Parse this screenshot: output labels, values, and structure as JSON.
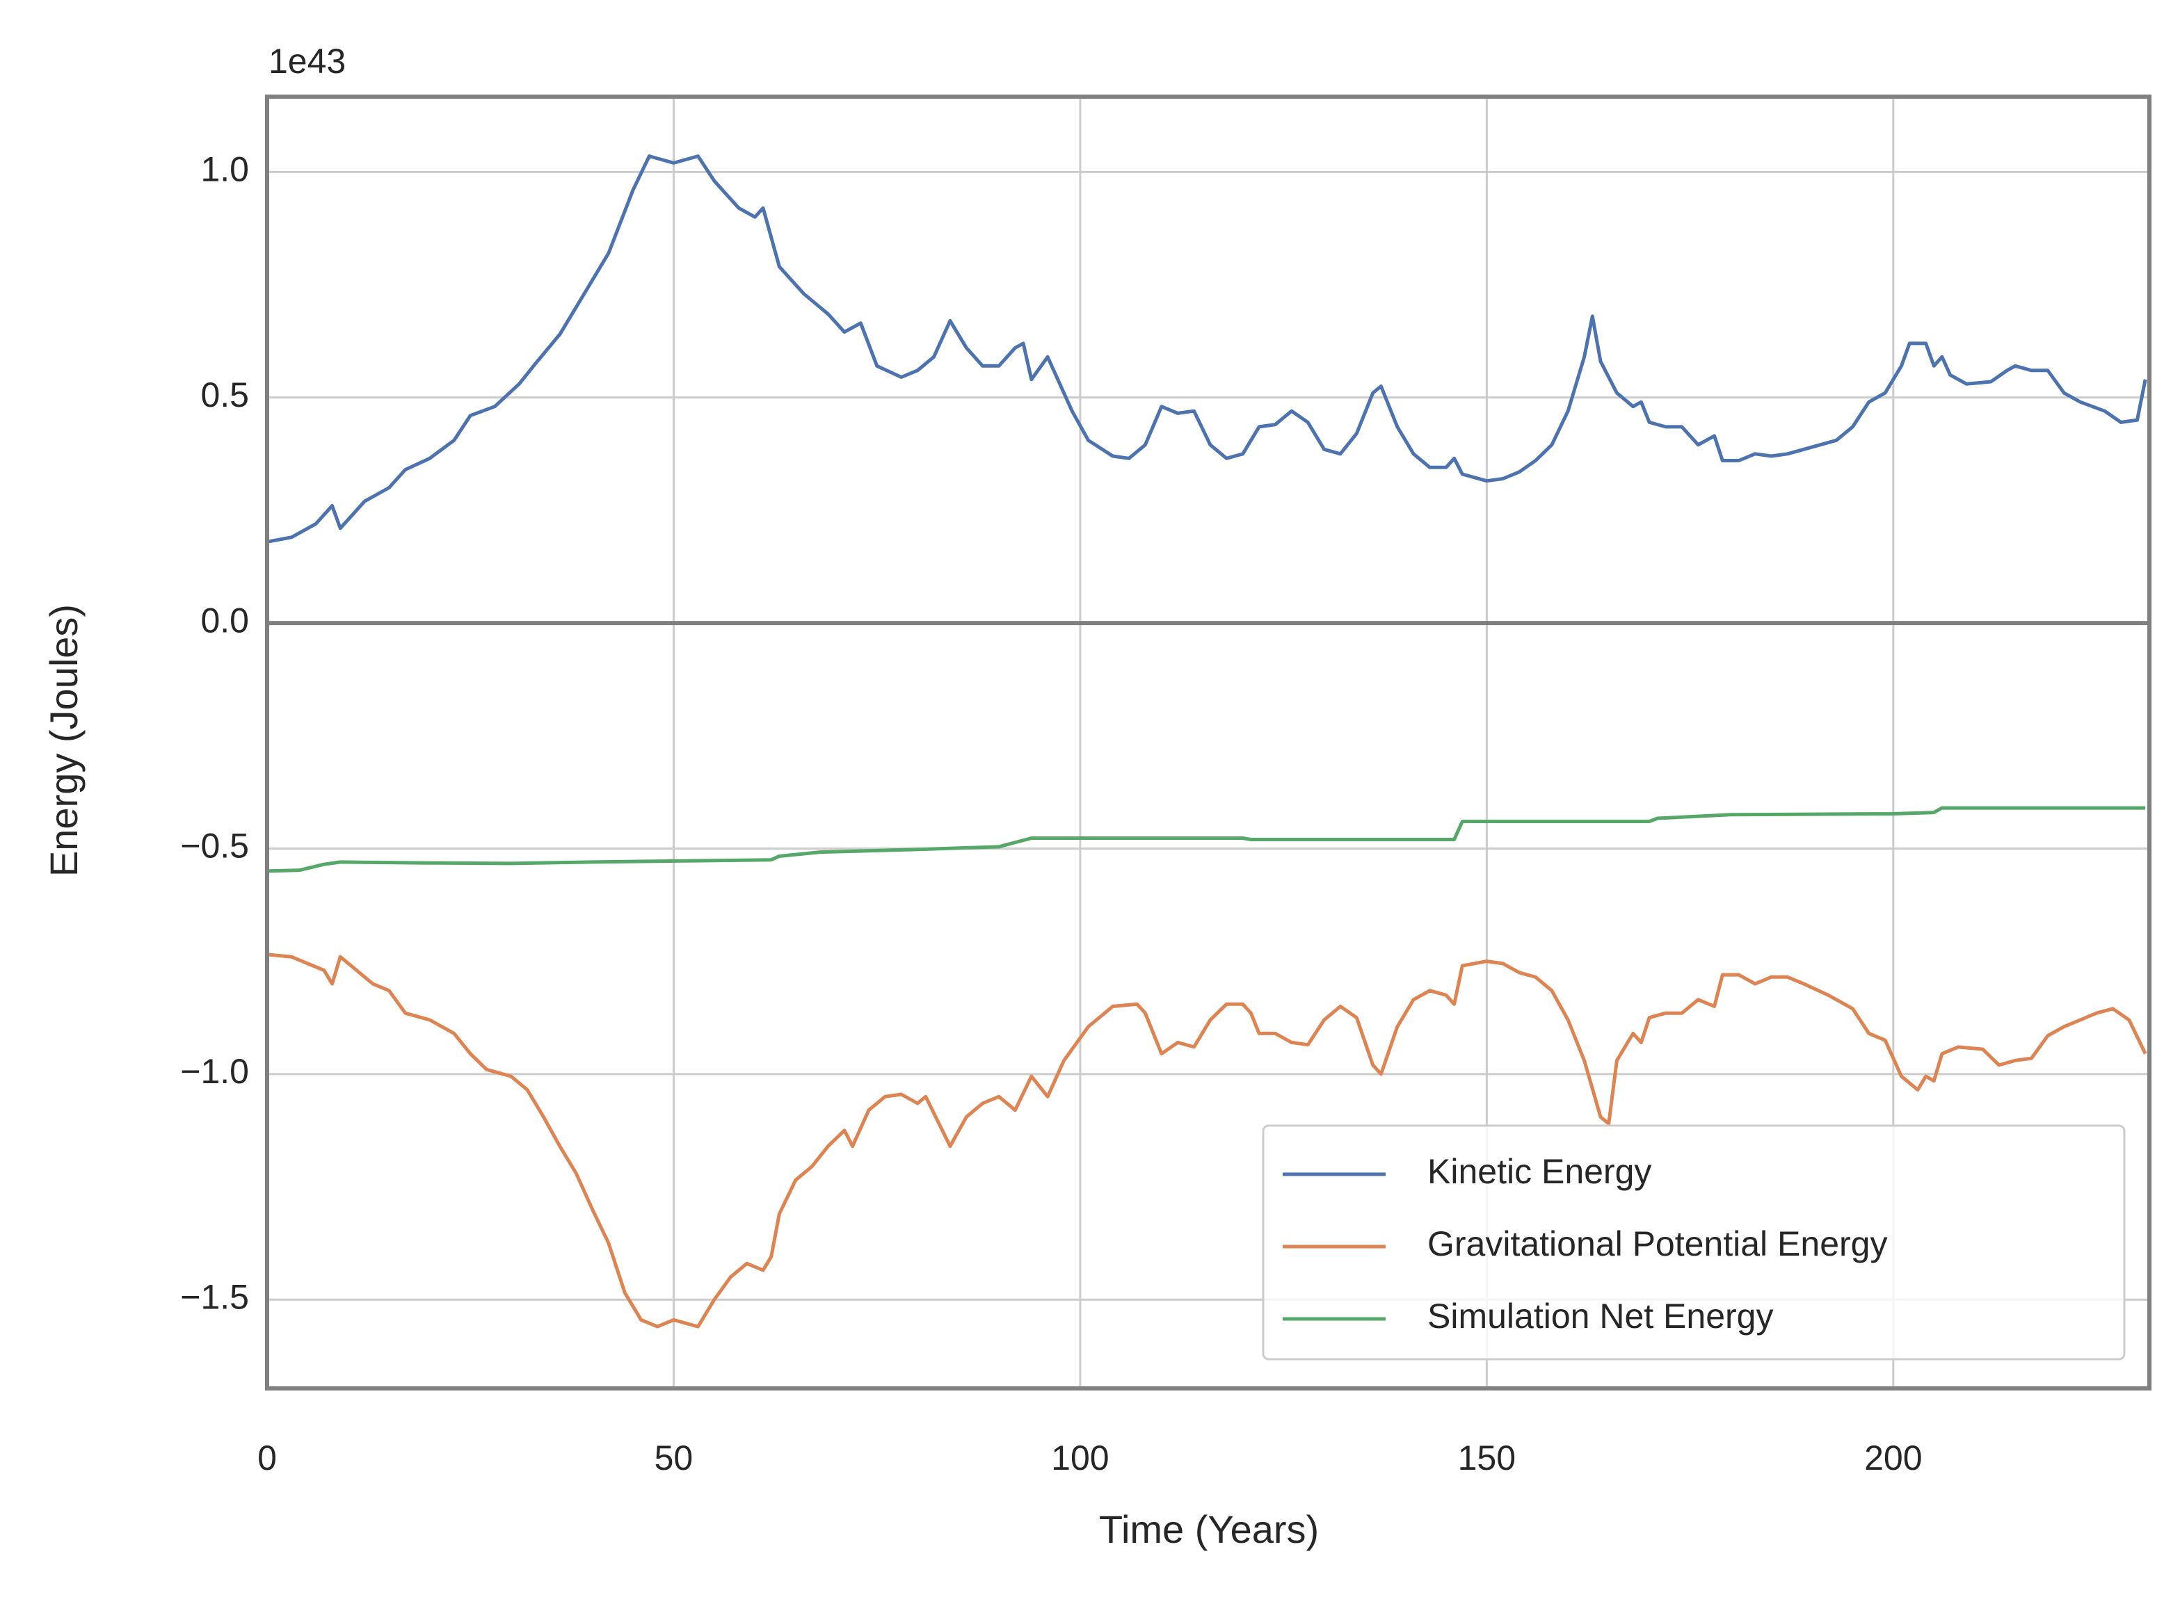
{
  "chart_data": {
    "type": "line",
    "ylabel": "Energy (Joules)",
    "xlabel": "Time (Years)",
    "y_offset_label": "1e43",
    "xlim": [
      0,
      231.5
    ],
    "ylim": [
      -1.697,
      1.167
    ],
    "xticks": [
      0,
      50,
      100,
      150,
      200
    ],
    "yticks": [
      {
        "value": -1.5,
        "label": "−1.5"
      },
      {
        "value": -1.0,
        "label": "−1.0"
      },
      {
        "value": -0.5,
        "label": "−0.5"
      },
      {
        "value": 0,
        "label": "0.0"
      },
      {
        "value": 0.5,
        "label": "0.5"
      },
      {
        "value": 1.0,
        "label": "1.0"
      }
    ],
    "grid": true,
    "hline": 0,
    "legend": "lower right",
    "series": [
      {
        "name": "Kinetic Energy",
        "color": "#4c72b0",
        "x": [
          0,
          3,
          6,
          8,
          9,
          12,
          15,
          17,
          20,
          23,
          25,
          28,
          31,
          33,
          36,
          39,
          42,
          45,
          47,
          50,
          53,
          55,
          58,
          60,
          61,
          63,
          66,
          69,
          71,
          73,
          75,
          78,
          80,
          82,
          84,
          86,
          88,
          90,
          92,
          93,
          94,
          96,
          99,
          101,
          104,
          106,
          108,
          110,
          112,
          114,
          116,
          118,
          120,
          122,
          124,
          126,
          128,
          130,
          132,
          134,
          136,
          137,
          139,
          141,
          143,
          145,
          146,
          147,
          150,
          152,
          154,
          156,
          158,
          160,
          162,
          163,
          164,
          166,
          168,
          169,
          170,
          172,
          174,
          176,
          178,
          179,
          181,
          183,
          185,
          187,
          189,
          191,
          193,
          195,
          197,
          199,
          201,
          202,
          204,
          205,
          206,
          207,
          209,
          212,
          214,
          215,
          217,
          219,
          221,
          223,
          226,
          228,
          230,
          231
        ],
        "values": [
          0.18,
          0.19,
          0.22,
          0.26,
          0.21,
          0.27,
          0.3,
          0.34,
          0.365,
          0.405,
          0.46,
          0.48,
          0.53,
          0.575,
          0.64,
          0.73,
          0.82,
          0.96,
          1.035,
          1.02,
          1.035,
          0.98,
          0.92,
          0.9,
          0.92,
          0.79,
          0.73,
          0.685,
          0.645,
          0.665,
          0.57,
          0.545,
          0.56,
          0.59,
          0.67,
          0.61,
          0.57,
          0.57,
          0.61,
          0.62,
          0.54,
          0.59,
          0.47,
          0.405,
          0.37,
          0.365,
          0.395,
          0.48,
          0.465,
          0.47,
          0.395,
          0.365,
          0.375,
          0.435,
          0.44,
          0.47,
          0.445,
          0.385,
          0.375,
          0.42,
          0.51,
          0.525,
          0.435,
          0.375,
          0.345,
          0.345,
          0.365,
          0.33,
          0.315,
          0.32,
          0.335,
          0.36,
          0.395,
          0.47,
          0.59,
          0.68,
          0.58,
          0.51,
          0.48,
          0.49,
          0.445,
          0.435,
          0.435,
          0.395,
          0.415,
          0.36,
          0.36,
          0.375,
          0.37,
          0.375,
          0.385,
          0.395,
          0.405,
          0.435,
          0.49,
          0.51,
          0.57,
          0.62,
          0.62,
          0.57,
          0.59,
          0.55,
          0.53,
          0.535,
          0.56,
          0.57,
          0.56,
          0.56,
          0.51,
          0.49,
          0.47,
          0.445,
          0.45,
          0.54
        ]
      },
      {
        "name": "Gravitational Potential Energy",
        "color": "#dd8452",
        "x": [
          0,
          3,
          5,
          7,
          8,
          9,
          11,
          13,
          15,
          17,
          20,
          23,
          25,
          27,
          30,
          32,
          34,
          36,
          38,
          40,
          42,
          44,
          46,
          48,
          50,
          53,
          55,
          57,
          59,
          61,
          62,
          63,
          65,
          67,
          69,
          71,
          72,
          74,
          76,
          78,
          80,
          81,
          84,
          86,
          88,
          90,
          92,
          94,
          96,
          98,
          101,
          104,
          107,
          108,
          110,
          112,
          114,
          116,
          118,
          120,
          121,
          122,
          124,
          126,
          128,
          130,
          132,
          134,
          136,
          137,
          139,
          141,
          143,
          145,
          146,
          147,
          150,
          152,
          154,
          156,
          158,
          160,
          162,
          164,
          165,
          166,
          168,
          169,
          170,
          172,
          174,
          176,
          178,
          179,
          181,
          183,
          185,
          187,
          189,
          192,
          195,
          197,
          199,
          201,
          203,
          204,
          205,
          206,
          208,
          211,
          213,
          215,
          217,
          219,
          221,
          223,
          225,
          227,
          229,
          231
        ],
        "values": [
          -0.735,
          -0.74,
          -0.755,
          -0.77,
          -0.8,
          -0.74,
          -0.77,
          -0.8,
          -0.815,
          -0.865,
          -0.88,
          -0.91,
          -0.955,
          -0.99,
          -1.005,
          -1.035,
          -1.095,
          -1.16,
          -1.22,
          -1.3,
          -1.375,
          -1.485,
          -1.545,
          -1.56,
          -1.545,
          -1.56,
          -1.5,
          -1.45,
          -1.42,
          -1.435,
          -1.405,
          -1.31,
          -1.235,
          -1.205,
          -1.16,
          -1.125,
          -1.16,
          -1.08,
          -1.05,
          -1.045,
          -1.065,
          -1.05,
          -1.16,
          -1.095,
          -1.065,
          -1.05,
          -1.08,
          -1.005,
          -1.05,
          -0.97,
          -0.895,
          -0.85,
          -0.845,
          -0.865,
          -0.955,
          -0.93,
          -0.94,
          -0.88,
          -0.845,
          -0.845,
          -0.865,
          -0.91,
          -0.91,
          -0.93,
          -0.935,
          -0.88,
          -0.85,
          -0.875,
          -0.98,
          -1.0,
          -0.895,
          -0.835,
          -0.815,
          -0.825,
          -0.845,
          -0.76,
          -0.75,
          -0.755,
          -0.775,
          -0.785,
          -0.815,
          -0.88,
          -0.97,
          -1.095,
          -1.11,
          -0.97,
          -0.91,
          -0.93,
          -0.875,
          -0.865,
          -0.865,
          -0.835,
          -0.85,
          -0.78,
          -0.78,
          -0.8,
          -0.785,
          -0.785,
          -0.8,
          -0.825,
          -0.855,
          -0.91,
          -0.925,
          -1.005,
          -1.035,
          -1.005,
          -1.015,
          -0.955,
          -0.94,
          -0.945,
          -0.98,
          -0.97,
          -0.965,
          -0.915,
          -0.895,
          -0.88,
          -0.865,
          -0.855,
          -0.88,
          -0.955
        ]
      },
      {
        "name": "Simulation Net Energy",
        "color": "#55a868",
        "x": [
          0,
          4,
          7,
          9,
          20,
          30,
          40,
          53,
          62,
          63,
          68,
          80,
          90,
          94,
          120,
          121,
          146,
          147,
          170,
          171,
          180,
          200,
          205,
          206,
          231
        ],
        "values": [
          -0.55,
          -0.548,
          -0.535,
          -0.53,
          -0.532,
          -0.533,
          -0.53,
          -0.527,
          -0.525,
          -0.517,
          -0.508,
          -0.502,
          -0.496,
          -0.477,
          -0.477,
          -0.48,
          -0.48,
          -0.44,
          -0.44,
          -0.433,
          -0.425,
          -0.423,
          -0.42,
          -0.41,
          -0.41
        ]
      }
    ]
  }
}
